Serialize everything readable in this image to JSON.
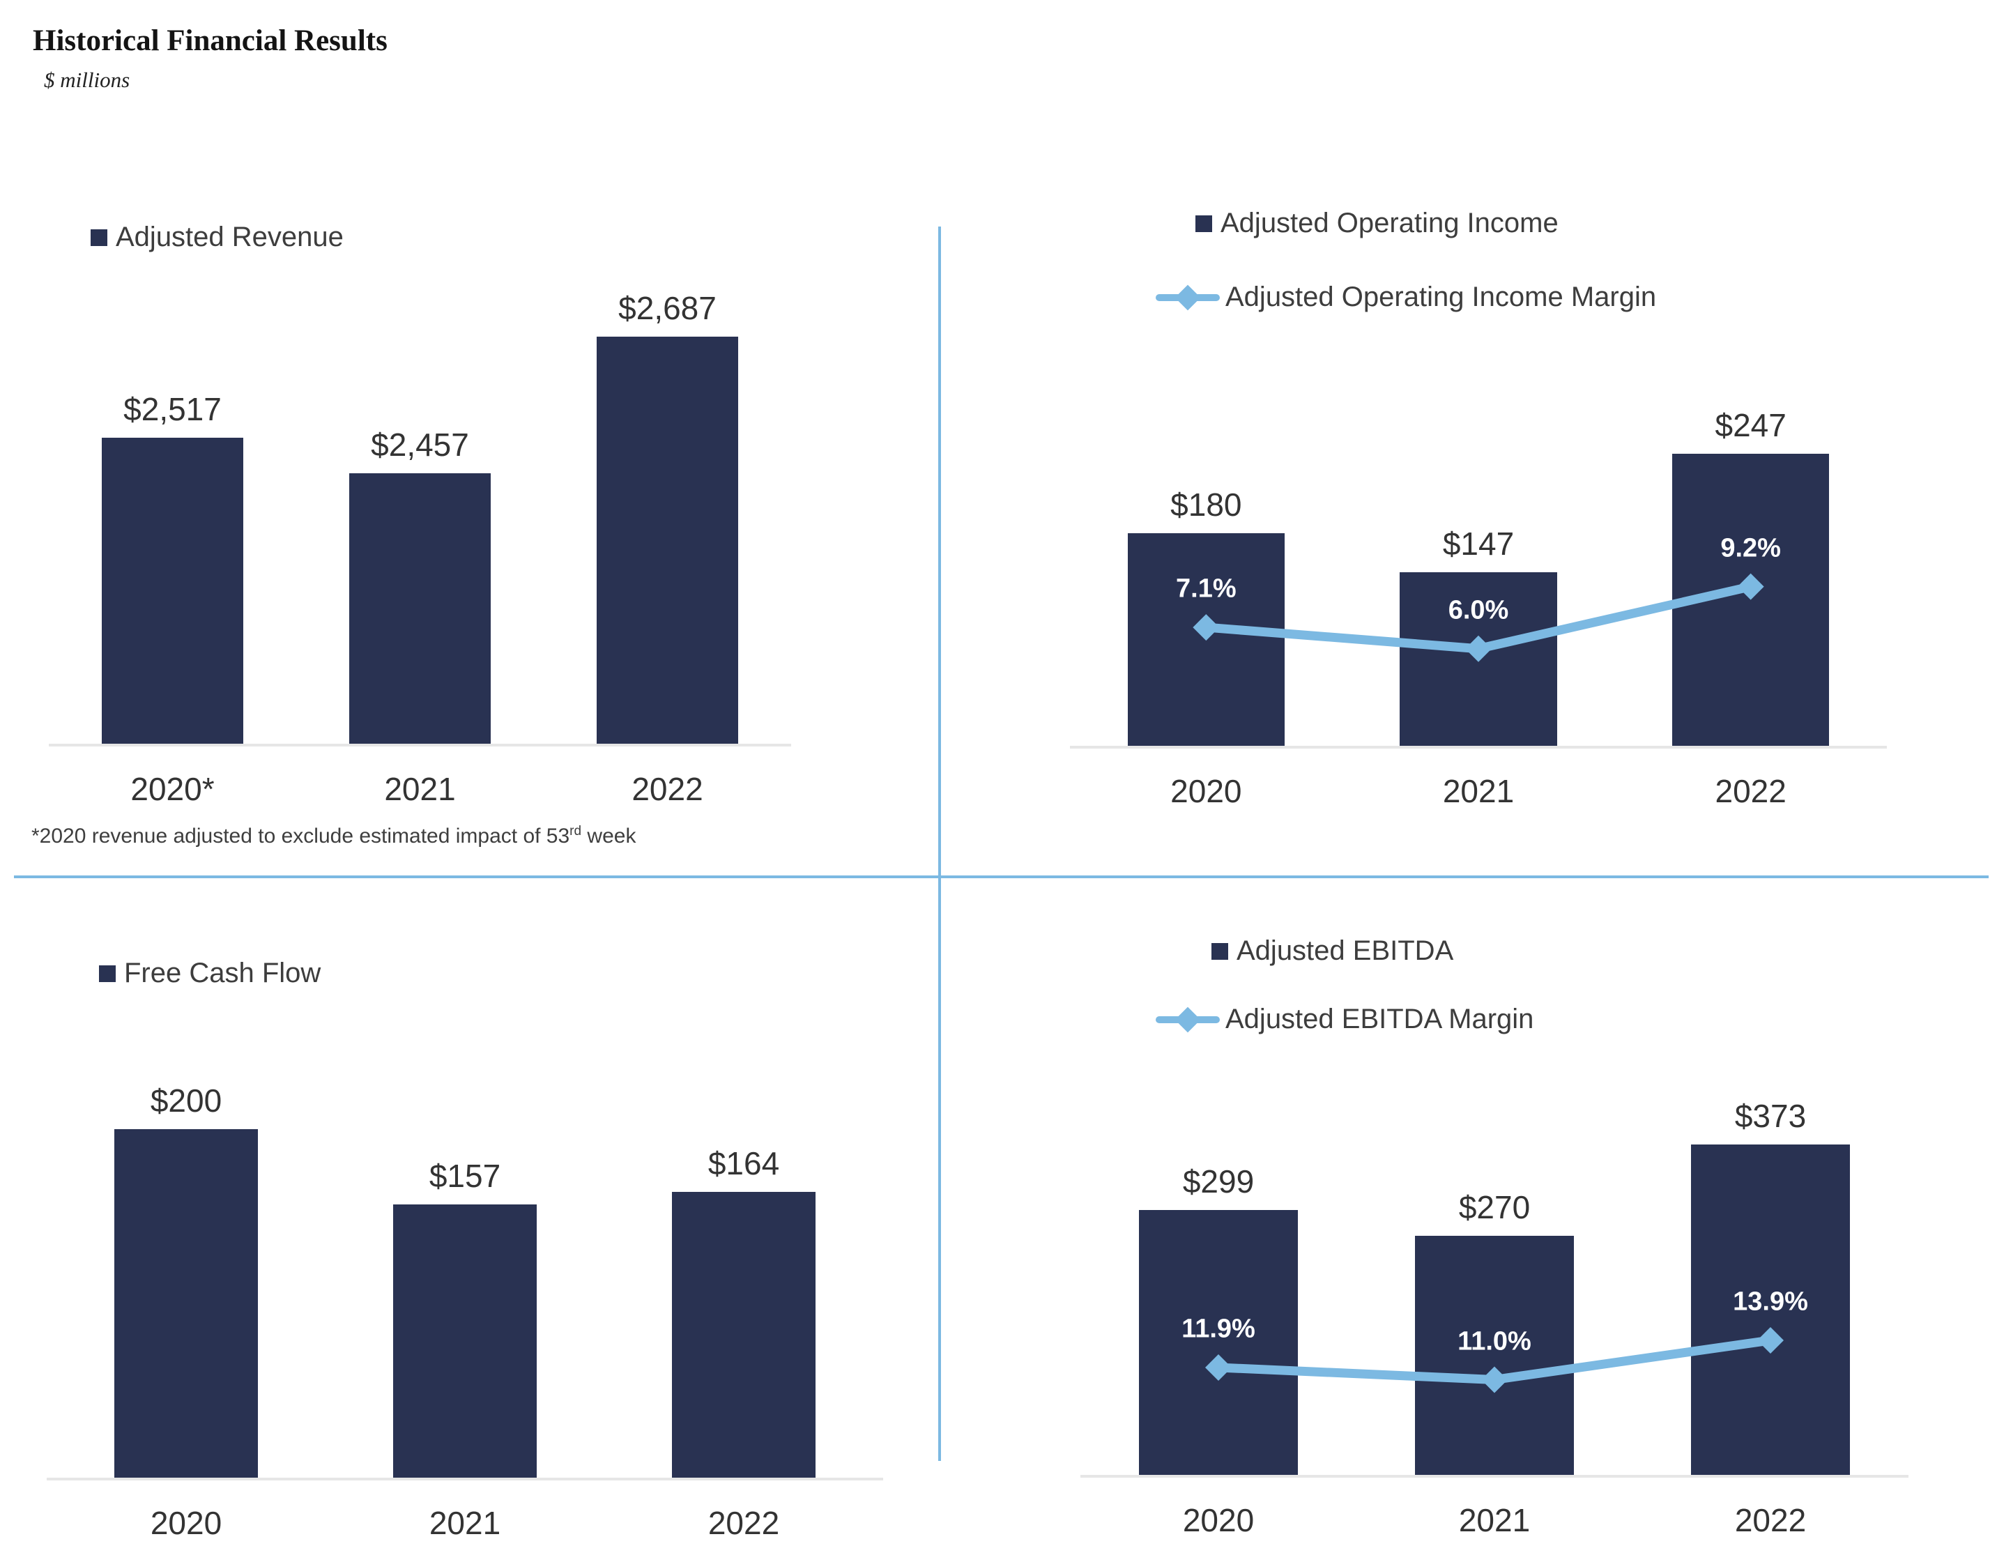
{
  "page": {
    "title": "Historical Financial Results",
    "subtitle": "$ millions"
  },
  "colors": {
    "bar": "#293252",
    "line": "#7CB9E2",
    "axis": "#E6E6E6",
    "divider": "#7CB9E2",
    "label_text": "#333333",
    "pct_label_text": "#FFFFFF"
  },
  "chart_data": [
    {
      "id": "revenue",
      "type": "bar",
      "categories": [
        "2020*",
        "2021",
        "2022"
      ],
      "series": [
        {
          "name": "Adjusted Revenue",
          "type": "bar",
          "values": [
            2517,
            2457,
            2687
          ],
          "labels": [
            "$2,517",
            "$2,457",
            "$2,687"
          ]
        }
      ],
      "ylim": [
        2000,
        2800
      ],
      "legend_position": "top-left",
      "grid": "off",
      "footnote": {
        "text_before_sup": "*2020 revenue adjusted to exclude estimated impact of 53",
        "sup": "rd",
        "text_after_sup": " week"
      }
    },
    {
      "id": "operating-income",
      "type": "bar+line",
      "categories": [
        "2020",
        "2021",
        "2022"
      ],
      "series": [
        {
          "name": "Adjusted Operating Income",
          "type": "bar",
          "values": [
            180,
            147,
            247
          ],
          "labels": [
            "$180",
            "$147",
            "$247"
          ]
        },
        {
          "name": "Adjusted Operating Income Margin",
          "type": "line",
          "values": [
            7.1,
            6.0,
            9.2
          ],
          "labels": [
            "7.1%",
            "6.0%",
            "9.2%"
          ]
        }
      ],
      "ylim": [
        0,
        345
      ],
      "ylim2": [
        1,
        22
      ],
      "legend_position": "top-center",
      "grid": "off"
    },
    {
      "id": "free-cash-flow",
      "type": "bar",
      "categories": [
        "2020",
        "2021",
        "2022"
      ],
      "series": [
        {
          "name": "Free Cash Flow",
          "type": "bar",
          "values": [
            200,
            157,
            164
          ],
          "labels": [
            "$200",
            "$157",
            "$164"
          ]
        }
      ],
      "ylim": [
        0,
        240
      ],
      "legend_position": "top-left",
      "grid": "off"
    },
    {
      "id": "ebitda",
      "type": "bar+line",
      "categories": [
        "2020",
        "2021",
        "2022"
      ],
      "series": [
        {
          "name": "Adjusted EBITDA",
          "type": "bar",
          "values": [
            299,
            270,
            373
          ],
          "labels": [
            "$299",
            "$270",
            "$373"
          ]
        },
        {
          "name": "Adjusted EBITDA Margin",
          "type": "line",
          "values": [
            11.9,
            11.0,
            13.9
          ],
          "labels": [
            "11.9%",
            "11.0%",
            "13.9%"
          ]
        }
      ],
      "ylim": [
        0,
        460
      ],
      "ylim2": [
        4,
        34
      ],
      "legend_position": "top-center",
      "grid": "off"
    }
  ]
}
